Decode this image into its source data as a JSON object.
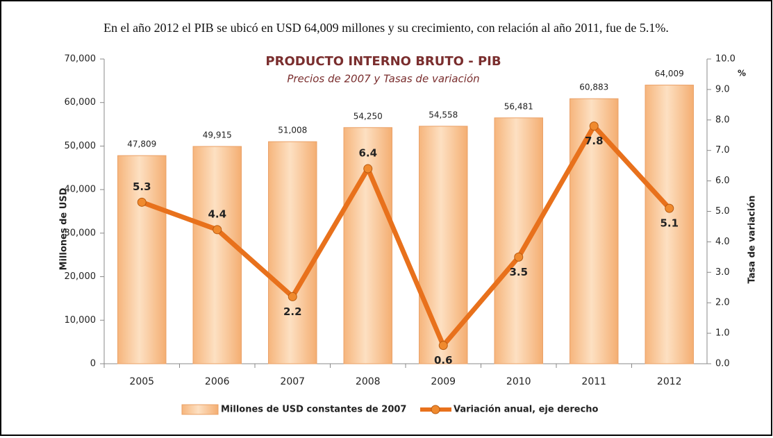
{
  "caption": "En el año 2012 el PIB se ubicó en USD 64,009 millones y su crecimiento, con relación al año 2011, fue de 5.1%.",
  "chart_data": {
    "type": "bar",
    "title": "PRODUCTO INTERNO BRUTO - PIB",
    "subtitle": "Precios de 2007 y Tasas de variación",
    "ylabel": "Millones de USD",
    "y2label": "Tasa de variación",
    "y2unit": "%",
    "categories": [
      "2005",
      "2006",
      "2007",
      "2008",
      "2009",
      "2010",
      "2011",
      "2012"
    ],
    "series": [
      {
        "name": "Millones de USD constantes de 2007",
        "type": "bar",
        "color": "#f9c493",
        "values": [
          47809,
          49915,
          51008,
          54250,
          54558,
          56481,
          60883,
          64009
        ],
        "value_labels": [
          "47,809",
          "49,915",
          "51,008",
          "54,250",
          "54,558",
          "56,481",
          "60,883",
          "64,009"
        ]
      },
      {
        "name": "Variación anual, eje derecho",
        "type": "line",
        "axis": "y2",
        "color": "#e8711c",
        "values": [
          5.3,
          4.4,
          2.2,
          6.4,
          0.6,
          3.5,
          7.8,
          5.1
        ]
      }
    ],
    "ylim": [
      0,
      70000
    ],
    "yticks": [
      0,
      {
        "value": 10000,
        "label": "10,000"
      },
      {
        "value": 20000,
        "label": "20,000"
      },
      {
        "value": 30000,
        "label": "30,000"
      },
      {
        "value": 40000,
        "label": "40,000"
      },
      {
        "value": 50000,
        "label": "50,000"
      },
      {
        "value": 60000,
        "label": "60,000"
      },
      {
        "value": 70000,
        "label": "70,000"
      }
    ],
    "y2lim": [
      0,
      10
    ],
    "y2ticks": [
      {
        "value": 0,
        "label": "0.0"
      },
      {
        "value": 1,
        "label": "1.0"
      },
      {
        "value": 2,
        "label": "2.0"
      },
      {
        "value": 3,
        "label": "3.0"
      },
      {
        "value": 4,
        "label": "4.0"
      },
      {
        "value": 5,
        "label": "5.0"
      },
      {
        "value": 6,
        "label": "6.0"
      },
      {
        "value": 7,
        "label": "7.0"
      },
      {
        "value": 8,
        "label": "8.0"
      },
      {
        "value": 9,
        "label": "9.0"
      },
      {
        "value": 10,
        "label": "10.0"
      }
    ],
    "legend": "bottom"
  }
}
